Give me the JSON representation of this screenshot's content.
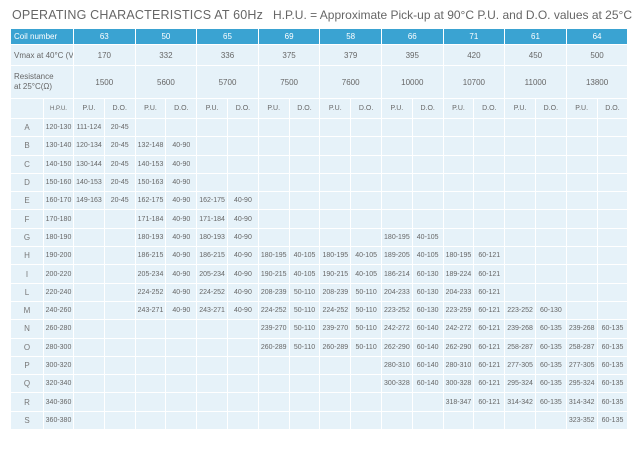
{
  "header": {
    "title": "OPERATING CHARACTERISTICS AT 60Hz",
    "note": "H.P.U. = Approximate Pick-up at 90°C P.U. and D.O. values at 25°C"
  },
  "table": {
    "coil_label": "Coil number",
    "vmax_label": "Vmax at 40°C (V)",
    "res_label_1": "Resistance",
    "res_label_2": "at 25°C(Ω)",
    "hpu_label": "H.P.U.",
    "pu_label": "P.U.",
    "do_label": "D.O.",
    "coils": [
      "63",
      "50",
      "65",
      "69",
      "58",
      "66",
      "71",
      "61",
      "64"
    ],
    "vmax": [
      "170",
      "332",
      "336",
      "375",
      "379",
      "395",
      "420",
      "450",
      "500"
    ],
    "resistance": [
      "1500",
      "5600",
      "5700",
      "7500",
      "7600",
      "10000",
      "10700",
      "11000",
      "13800"
    ],
    "rows": [
      {
        "label": "A",
        "hpu": "120-130",
        "cells": [
          [
            "111-124",
            "20-45"
          ],
          [
            "",
            ""
          ],
          [
            "",
            ""
          ],
          [
            "",
            ""
          ],
          [
            "",
            ""
          ],
          [
            "",
            ""
          ],
          [
            "",
            ""
          ],
          [
            "",
            ""
          ],
          [
            "",
            ""
          ]
        ]
      },
      {
        "label": "B",
        "hpu": "130-140",
        "cells": [
          [
            "120-134",
            "20-45"
          ],
          [
            "132-148",
            "40-90"
          ],
          [
            "",
            ""
          ],
          [
            "",
            ""
          ],
          [
            "",
            ""
          ],
          [
            "",
            ""
          ],
          [
            "",
            ""
          ],
          [
            "",
            ""
          ],
          [
            "",
            ""
          ]
        ]
      },
      {
        "label": "C",
        "hpu": "140-150",
        "cells": [
          [
            "130-144",
            "20-45"
          ],
          [
            "140-153",
            "40-90"
          ],
          [
            "",
            ""
          ],
          [
            "",
            ""
          ],
          [
            "",
            ""
          ],
          [
            "",
            ""
          ],
          [
            "",
            ""
          ],
          [
            "",
            ""
          ],
          [
            "",
            ""
          ]
        ]
      },
      {
        "label": "D",
        "hpu": "150-160",
        "cells": [
          [
            "140-153",
            "20-45"
          ],
          [
            "150-163",
            "40-90"
          ],
          [
            "",
            ""
          ],
          [
            "",
            ""
          ],
          [
            "",
            ""
          ],
          [
            "",
            ""
          ],
          [
            "",
            ""
          ],
          [
            "",
            ""
          ],
          [
            "",
            ""
          ]
        ]
      },
      {
        "label": "E",
        "hpu": "160-170",
        "cells": [
          [
            "149-163",
            "20-45"
          ],
          [
            "162-175",
            "40-90"
          ],
          [
            "162-175",
            "40-90"
          ],
          [
            "",
            ""
          ],
          [
            "",
            ""
          ],
          [
            "",
            ""
          ],
          [
            "",
            ""
          ],
          [
            "",
            ""
          ],
          [
            "",
            ""
          ]
        ]
      },
      {
        "label": "F",
        "hpu": "170-180",
        "cells": [
          [
            "",
            ""
          ],
          [
            "171-184",
            "40-90"
          ],
          [
            "171-184",
            "40-90"
          ],
          [
            "",
            ""
          ],
          [
            "",
            ""
          ],
          [
            "",
            ""
          ],
          [
            "",
            ""
          ],
          [
            "",
            ""
          ],
          [
            "",
            ""
          ]
        ]
      },
      {
        "label": "G",
        "hpu": "180-190",
        "cells": [
          [
            "",
            ""
          ],
          [
            "180-193",
            "40-90"
          ],
          [
            "180-193",
            "40-90"
          ],
          [
            "",
            ""
          ],
          [
            "",
            ""
          ],
          [
            "180-195",
            "40-105"
          ],
          [
            "",
            ""
          ],
          [
            "",
            ""
          ],
          [
            "",
            ""
          ]
        ]
      },
      {
        "label": "H",
        "hpu": "190-200",
        "cells": [
          [
            "",
            ""
          ],
          [
            "186-215",
            "40-90"
          ],
          [
            "186-215",
            "40-90"
          ],
          [
            "180-195",
            "40-105"
          ],
          [
            "180-195",
            "40-105"
          ],
          [
            "189-205",
            "40-105"
          ],
          [
            "180-195",
            "60-121"
          ],
          [
            "",
            ""
          ],
          [
            "",
            ""
          ]
        ]
      },
      {
        "label": "I",
        "hpu": "200-220",
        "cells": [
          [
            "",
            ""
          ],
          [
            "205-234",
            "40-90"
          ],
          [
            "205-234",
            "40-90"
          ],
          [
            "190-215",
            "40-105"
          ],
          [
            "190-215",
            "40-105"
          ],
          [
            "186-214",
            "60-130"
          ],
          [
            "189-224",
            "60-121"
          ],
          [
            "",
            ""
          ],
          [
            "",
            ""
          ]
        ]
      },
      {
        "label": "L",
        "hpu": "220-240",
        "cells": [
          [
            "",
            ""
          ],
          [
            "224-252",
            "40-90"
          ],
          [
            "224-252",
            "40-90"
          ],
          [
            "208-239",
            "50-110"
          ],
          [
            "208-239",
            "50-110"
          ],
          [
            "204-233",
            "60-130"
          ],
          [
            "204-233",
            "60-121"
          ],
          [
            "",
            ""
          ],
          [
            "",
            ""
          ]
        ]
      },
      {
        "label": "M",
        "hpu": "240-260",
        "cells": [
          [
            "",
            ""
          ],
          [
            "243-271",
            "40-90"
          ],
          [
            "243-271",
            "40-90"
          ],
          [
            "224-252",
            "50-110"
          ],
          [
            "224-252",
            "50-110"
          ],
          [
            "223-252",
            "60-130"
          ],
          [
            "223-259",
            "60-121"
          ],
          [
            "223-252",
            "60-130"
          ],
          [
            "",
            ""
          ]
        ]
      },
      {
        "label": "N",
        "hpu": "260-280",
        "cells": [
          [
            "",
            ""
          ],
          [
            "",
            ""
          ],
          [
            "",
            ""
          ],
          [
            "239-270",
            "50-110"
          ],
          [
            "239-270",
            "50-110"
          ],
          [
            "242-272",
            "60-140"
          ],
          [
            "242-272",
            "60-121"
          ],
          [
            "239-268",
            "60-135"
          ],
          [
            "239-268",
            "60-135"
          ]
        ]
      },
      {
        "label": "O",
        "hpu": "280-300",
        "cells": [
          [
            "",
            ""
          ],
          [
            "",
            ""
          ],
          [
            "",
            ""
          ],
          [
            "260-289",
            "50-110"
          ],
          [
            "260-289",
            "50-110"
          ],
          [
            "262-290",
            "60-140"
          ],
          [
            "262-290",
            "60-121"
          ],
          [
            "258-287",
            "60-135"
          ],
          [
            "258-287",
            "60-135"
          ]
        ]
      },
      {
        "label": "P",
        "hpu": "300-320",
        "cells": [
          [
            "",
            ""
          ],
          [
            "",
            ""
          ],
          [
            "",
            ""
          ],
          [
            "",
            ""
          ],
          [
            "",
            ""
          ],
          [
            "280-310",
            "60-140"
          ],
          [
            "280-310",
            "60-121"
          ],
          [
            "277-305",
            "60-135"
          ],
          [
            "277-305",
            "60-135"
          ]
        ]
      },
      {
        "label": "Q",
        "hpu": "320-340",
        "cells": [
          [
            "",
            ""
          ],
          [
            "",
            ""
          ],
          [
            "",
            ""
          ],
          [
            "",
            ""
          ],
          [
            "",
            ""
          ],
          [
            "300-328",
            "60-140"
          ],
          [
            "300-328",
            "60-121"
          ],
          [
            "295-324",
            "60-135"
          ],
          [
            "295-324",
            "60-135"
          ]
        ]
      },
      {
        "label": "R",
        "hpu": "340-360",
        "cells": [
          [
            "",
            ""
          ],
          [
            "",
            ""
          ],
          [
            "",
            ""
          ],
          [
            "",
            ""
          ],
          [
            "",
            ""
          ],
          [
            "",
            ""
          ],
          [
            "318-347",
            "60-121"
          ],
          [
            "314-342",
            "60-135"
          ],
          [
            "314-342",
            "60-135"
          ]
        ]
      },
      {
        "label": "S",
        "hpu": "360-380",
        "cells": [
          [
            "",
            ""
          ],
          [
            "",
            ""
          ],
          [
            "",
            ""
          ],
          [
            "",
            ""
          ],
          [
            "",
            ""
          ],
          [
            "",
            ""
          ],
          [
            "",
            ""
          ],
          [
            "",
            ""
          ],
          [
            "323-352",
            "60-135"
          ]
        ]
      }
    ]
  }
}
